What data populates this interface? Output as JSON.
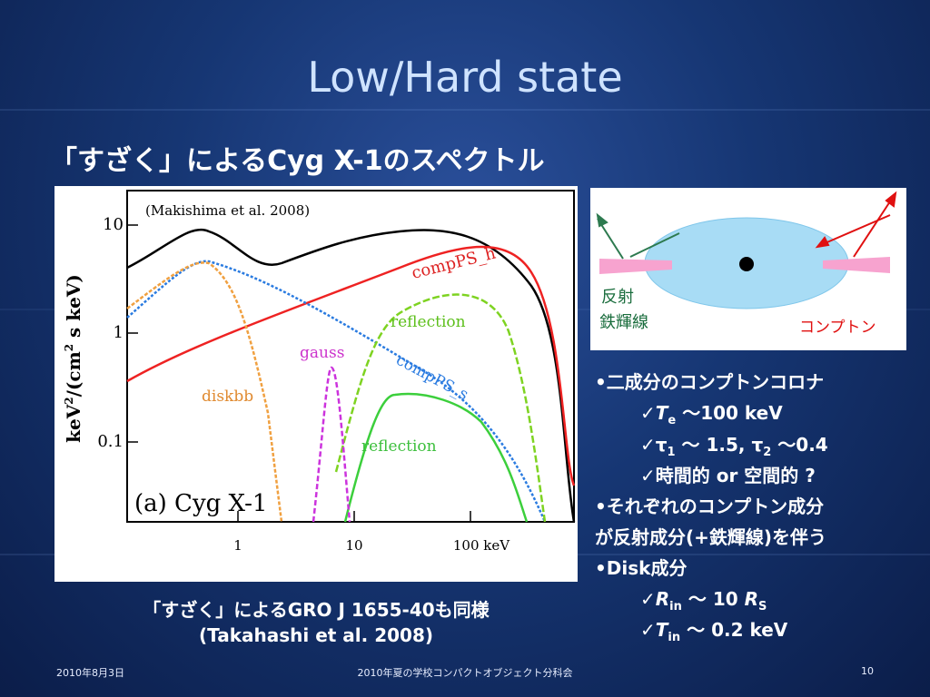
{
  "title": "Low/Hard state",
  "subtitle": "「すざく」によるCyg X-1のスペクトル",
  "figure": {
    "citation": "(Makishima et al. 2008)",
    "ylabel": [
      "keV",
      "2",
      "/(cm",
      "2",
      " s keV)"
    ],
    "yticks": [
      "10",
      "1",
      "0.1"
    ],
    "xticks": [
      "1",
      "10",
      "100 keV"
    ],
    "labels": [
      "compPS_h",
      "reflection",
      "gauss",
      "compPS_s",
      "diskbb",
      "reflection",
      "(a) Cyg X-1"
    ]
  },
  "diagram": {
    "reflection": "反射",
    "iron_line": "鉄輝線",
    "compton": "コンプトン"
  },
  "bullets": [
    [
      "•二成分のコンプトンコロナ"
    ],
    [
      "✓",
      "T",
      "e",
      " ～100 keV"
    ],
    [
      "✓τ",
      "1",
      " ～ 1.5, τ",
      "2",
      " ～0.4"
    ],
    [
      "✓時間的 or 空間的 ?"
    ],
    [
      "•それぞれのコンプトン成分"
    ],
    [
      "が反射成分(+鉄輝線)を伴う"
    ],
    [
      "•Disk成分"
    ],
    [
      "✓",
      "R",
      "in",
      " ～ 10 ",
      "R",
      "S"
    ],
    [
      "✓",
      "T",
      "in",
      " ～ 0.2 keV"
    ]
  ],
  "caption": [
    "「すざく」によるGRO J 1655-40も同様",
    "(Takahashi et al. 2008)"
  ],
  "footer": {
    "date": "2010年8月3日",
    "event": "2010年夏の学校コンパクトオブジェクト分科会",
    "page": "10"
  }
}
